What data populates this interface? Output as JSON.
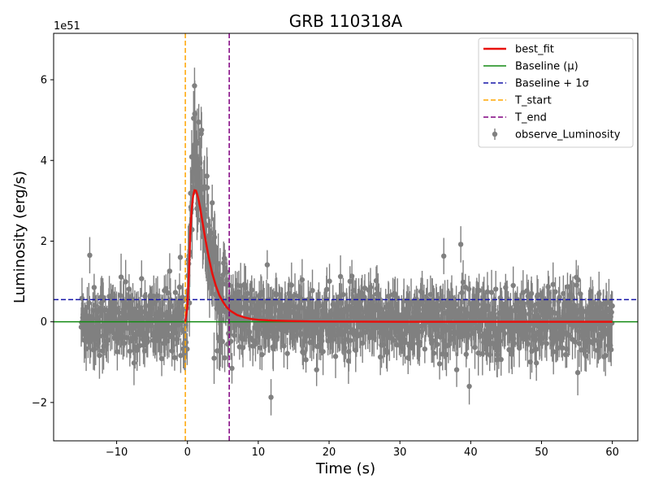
{
  "chart_data": {
    "type": "scatter",
    "title": "GRB 110318A",
    "xlabel": "Time (s)",
    "ylabel": "Luminosity (erg/s)",
    "y_offset_label": "1e51",
    "xlim": [
      -18.9,
      63.6
    ],
    "ylim": [
      -2.95,
      7.15
    ],
    "xticks": [
      -10,
      0,
      10,
      20,
      30,
      40,
      50,
      60
    ],
    "xtick_labels": [
      "−10",
      "0",
      "10",
      "20",
      "30",
      "40",
      "50",
      "60"
    ],
    "yticks": [
      -2,
      0,
      2,
      4,
      6
    ],
    "ytick_labels": [
      "−2",
      "0",
      "2",
      "4",
      "6"
    ],
    "legend_position": "top-right",
    "grid": false,
    "colors": {
      "best_fit": "#e8100c",
      "baseline": "#138a13",
      "baseline_1sigma": "#1515a8",
      "t_start": "#ffa500",
      "t_end": "#800080",
      "observed": "#808080"
    },
    "series": [
      {
        "name": "best_fit",
        "kind": "line",
        "x": [
          -0.3,
          0.0,
          0.2,
          0.4,
          0.6,
          0.8,
          1.0,
          1.2,
          1.4,
          1.6,
          1.8,
          2.0,
          2.5,
          3.0,
          3.5,
          4.0,
          4.5,
          5.0,
          5.5,
          6.0,
          7.0,
          8.0,
          9.0,
          10.0,
          12.0,
          14.0,
          17.0,
          20.0,
          25.0,
          30.0,
          40.0,
          50.0,
          60.0
        ],
        "y": [
          0.0,
          0.4,
          1.2,
          2.2,
          2.8,
          3.12,
          3.26,
          3.25,
          3.15,
          3.0,
          2.82,
          2.6,
          2.08,
          1.6,
          1.2,
          0.9,
          0.66,
          0.5,
          0.37,
          0.28,
          0.17,
          0.11,
          0.07,
          0.05,
          0.03,
          0.02,
          0.01,
          0.005,
          0.003,
          0.0,
          0.0,
          0.0,
          0.0
        ]
      },
      {
        "name": "Baseline (μ)",
        "kind": "hline",
        "y": 0.0
      },
      {
        "name": "Baseline + 1σ",
        "kind": "hline",
        "y": 0.55
      },
      {
        "name": "T_start",
        "kind": "vline",
        "x": -0.3
      },
      {
        "name": "T_end",
        "kind": "vline",
        "x": 5.9
      },
      {
        "name": "observe_Luminosity",
        "kind": "errorbar",
        "x_range": [
          -15,
          60
        ],
        "n_points": 1400,
        "baseline_sd": 0.42,
        "error_bar_halfwidth": 0.45,
        "notable_points": [
          {
            "x": 1.0,
            "y": 5.85
          },
          {
            "x": 1.6,
            "y": 4.95
          },
          {
            "x": 2.0,
            "y": 4.75
          },
          {
            "x": 3.5,
            "y": 2.95
          },
          {
            "x": 11.8,
            "y": -1.87
          },
          {
            "x": 38.6,
            "y": 1.92
          },
          {
            "x": 36.2,
            "y": 1.63
          },
          {
            "x": -13.8,
            "y": 1.65
          },
          {
            "x": 39.8,
            "y": -1.6
          },
          {
            "x": 4.2,
            "y": -0.72
          }
        ]
      }
    ]
  }
}
